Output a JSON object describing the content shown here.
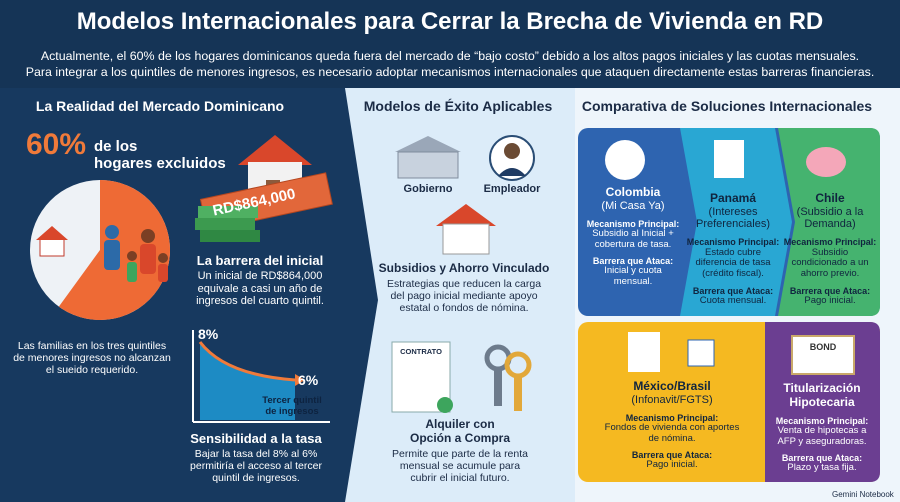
{
  "header": {
    "title": "Modelos Internacionales para Cerrar la Brecha de Vivienda en RD",
    "subtitle": [
      "Actualmente, el 60% de los hogares dominicanos queda fuera del mercado de “bajo costo” debido a los altos pagos iniciales y las cuotas mensuales.",
      "Para integrar a los quintiles de menores ingresos, es necesario adoptar mecanismos internacionales que ataquen directamente estas barreras financieras."
    ]
  },
  "left": {
    "section_title": "La Realidad del Mercado Dominicano",
    "excluded_share": {
      "value": 60,
      "label": "60%"
    },
    "headline_text": [
      "de los",
      "hogares excluidos"
    ],
    "price_tag": "RD$864,000",
    "barrier_title": "La barrera del inicial",
    "barrier_text": [
      "Un inicial de RD$864,000",
      "equivale a casi un año de",
      "ingresos del cuarto quintil."
    ],
    "families_text": [
      "Las familias en los tres quintiles",
      "de menores ingresos no alcanzan",
      "el sueido requerido."
    ],
    "rate_start": "8%",
    "rate_end": "6%",
    "rate_curve_label": [
      "Tercer quintil",
      "de ingresos"
    ],
    "sensitivity_title": "Sensibilidad a la tasa",
    "sensitivity_text": [
      "Bajar la tasa del 8% al 6%",
      "permitiría el acceso al tercer",
      "quintil de ingresos."
    ]
  },
  "middle": {
    "section_title": "Modelos de Éxito Aplicables",
    "government": "Gobierno",
    "employer": "Empleador",
    "subsidy_title": "Subsidios y Ahorro Vinculado",
    "subsidy_text": [
      "Estrategias que reducen la carga",
      "del pago inicial mediante apoyo",
      "estatal o fondos de nómina."
    ],
    "contract_label": "CONTRATO",
    "rent_title": [
      "Alquiler con",
      "Opción a Compra"
    ],
    "rent_text": [
      "Permite que parte de la renta",
      "mensual se acumule para",
      "cubrir el inicial futuro."
    ]
  },
  "right": {
    "section_title": "Comparativa de Soluciones Internacionales",
    "cards": [
      {
        "country": [
          "Colombia"
        ],
        "program": [
          "(Mi Casa Ya)"
        ],
        "mechanism_label": "Mecanismo Principal:",
        "mechanism": [
          "Subsidio al Inicial +",
          "cobertura de tasa."
        ],
        "barrier_label": "Barrera que Ataca:",
        "barrier": [
          "Inicial y cuota",
          "mensual."
        ]
      },
      {
        "country": [
          "Panamá"
        ],
        "program": [
          "(Intereses",
          "Preferenciales)"
        ],
        "mechanism_label": "Mecanismo Principal:",
        "mechanism": [
          "Estado cubre",
          "diferencia de tasa",
          "(crédito fiscal)."
        ],
        "barrier_label": "Barrera que Ataca:",
        "barrier": [
          "Cuota mensual."
        ]
      },
      {
        "country": [
          "Chile"
        ],
        "program": [
          "(Subsidio a la",
          "Demanda)"
        ],
        "mechanism_label": "Mecanismo Principal:",
        "mechanism": [
          "Subsidio",
          "condicionado a un",
          "ahorro previo."
        ],
        "barrier_label": "Barrera que Ataca:",
        "barrier": [
          "Pago inicial."
        ]
      },
      {
        "country": [
          "México/Brasil"
        ],
        "program": [
          "(Infonavit/FGTS)"
        ],
        "mechanism_label": "Mecanismo Principal:",
        "mechanism": [
          "Fondos de vivienda con aportes",
          "de nómina."
        ],
        "barrier_label": "Barrera que Ataca:",
        "barrier": [
          "Pago inicial."
        ]
      },
      {
        "country": [
          "Titularización",
          "Hipotecaria"
        ],
        "program": [],
        "mechanism_label": "Mecanismo Principal:",
        "mechanism": [
          "Venta de hipotecas a",
          "AFP y aseguradoras."
        ],
        "barrier_label": "Barrera que Ataca:",
        "barrier": [
          "Plazo y tasa fija."
        ]
      }
    ],
    "bond_label": "BOND"
  },
  "footer": "Gemini Notebook"
}
